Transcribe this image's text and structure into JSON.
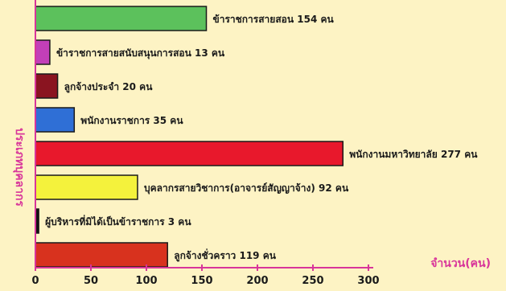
{
  "chart_data": {
    "type": "bar",
    "orientation": "horizontal",
    "categories": [
      "ข้าราชการสายสอน",
      "ข้าราชการสายสนับสนุนการสอน",
      "ลูกจ้างประจำ",
      "พนักงานราชการ",
      "พนักงานมหาวิทยาลัย",
      "บุคลากรสายวิชาการ(อาจารย์สัญญาจ้าง)",
      "ผู้บริหารที่มิได้เป็นข้าราชการ",
      "ลูกจ้างชั่วคราว"
    ],
    "labels": [
      "ข้าราชการสายสอน 154 คน",
      "ข้าราชการสายสนับสนุนการสอน 13 คน",
      "ลูกจ้างประจำ 20 คน",
      "พนักงานราชการ 35 คน",
      "พนักงานมหาวิทยาลัย 277 คน",
      "บุคลากรสายวิชาการ(อาจารย์สัญญาจ้าง) 92 คน",
      "ผู้บริหารที่มิได้เป็นข้าราชการ 3 คน",
      "ลูกจ้างชั่วคราว 119 คน"
    ],
    "values": [
      154,
      13,
      20,
      35,
      277,
      92,
      3,
      119
    ],
    "colors": [
      "#5cc15c",
      "#c23fb8",
      "#8a1420",
      "#2f6fd6",
      "#e8182c",
      "#f4f23c",
      "#111111",
      "#d8321e"
    ],
    "xlim": [
      0,
      300
    ],
    "xticks": [
      0,
      50,
      100,
      150,
      200,
      250,
      300
    ],
    "xlabel": "จำนวน(คน)",
    "ylabel": "ประเภทบุคลากร",
    "grid": false
  }
}
